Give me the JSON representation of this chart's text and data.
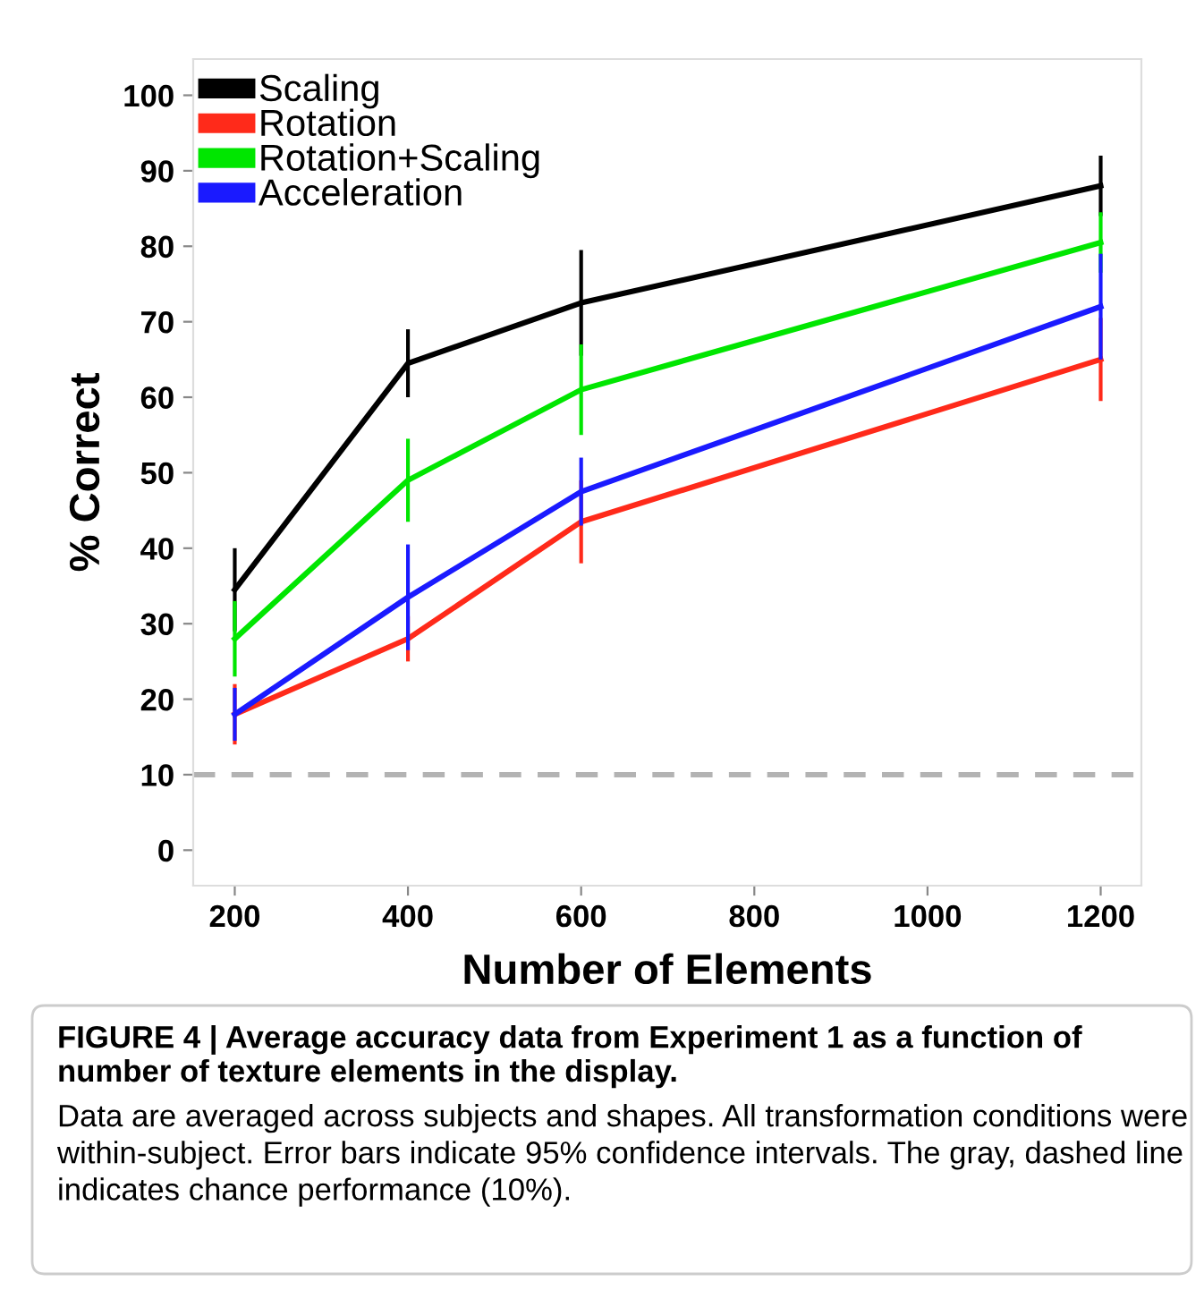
{
  "chart_data": {
    "type": "line",
    "title": "FIGURE 4 | Average accuracy data from Experiment 1 as a function of number of texture elements in the display.",
    "xlabel": "Number of Elements",
    "ylabel": "% Correct",
    "x": [
      200,
      400,
      600,
      1200
    ],
    "series": [
      {
        "name": "Scaling",
        "color": "#000000",
        "values": [
          34.5,
          64.5,
          72.5,
          88
        ],
        "errors": [
          5.5,
          4.5,
          7,
          4
        ]
      },
      {
        "name": "Rotation",
        "color": "#ff2a1a",
        "values": [
          18,
          28,
          43.5,
          65
        ],
        "errors": [
          4,
          3,
          5.5,
          5.5
        ]
      },
      {
        "name": "Rotation+Scaling",
        "color": "#00e600",
        "values": [
          28,
          49,
          61,
          80.5
        ],
        "errors": [
          5,
          5.5,
          6,
          4
        ]
      },
      {
        "name": "Acceleration",
        "color": "#1a1aff",
        "values": [
          18,
          33.5,
          47.5,
          72
        ],
        "errors": [
          3.5,
          7,
          4.5,
          7
        ]
      }
    ],
    "xlim": [
      152,
      1247
    ],
    "ylim": [
      -4.7,
      104.8
    ],
    "xticks": [
      200,
      400,
      600,
      800,
      1000,
      1200
    ],
    "yticks": [
      0,
      10,
      20,
      30,
      40,
      50,
      60,
      70,
      80,
      90,
      100
    ],
    "ref_lines": [
      {
        "axis": "y",
        "value": 10,
        "color": "#b3b3b3",
        "line_style": "dashed"
      }
    ],
    "grid": false,
    "legend": "top left",
    "marker": "none",
    "line_style": "solid",
    "annotations": [
      "Data are averaged across subjects and shapes. All transformation conditions were within-subject. Error bars indicate 95% confidence intervals. The gray, dashed line indicates chance performance (10%)."
    ]
  }
}
